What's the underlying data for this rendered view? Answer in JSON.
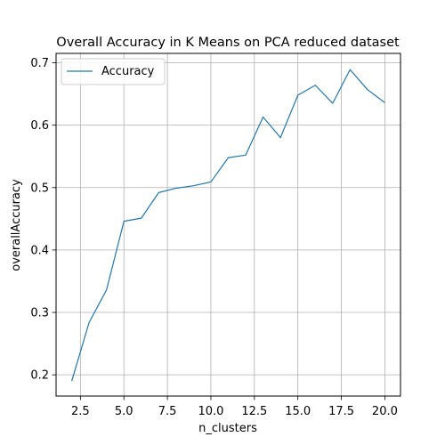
{
  "chart_data": {
    "type": "line",
    "title": "Overall Accuracy in K Means on PCA reduced dataset",
    "xlabel": "n_clusters",
    "ylabel": "overallAccuracy",
    "xlim": [
      1.1,
      20.9
    ],
    "ylim": [
      0.166,
      0.715
    ],
    "xticks": [
      2.5,
      5.0,
      7.5,
      10.0,
      12.5,
      15.0,
      17.5,
      20.0
    ],
    "xtick_labels": [
      "2.5",
      "5.0",
      "7.5",
      "10.0",
      "12.5",
      "15.0",
      "17.5",
      "20.0"
    ],
    "yticks": [
      0.2,
      0.3,
      0.4,
      0.5,
      0.6,
      0.7
    ],
    "ytick_labels": [
      "0.2",
      "0.3",
      "0.4",
      "0.5",
      "0.6",
      "0.7"
    ],
    "grid": true,
    "legend_position": "upper-left",
    "series": [
      {
        "name": "Accuracy",
        "color": "#1f77b4",
        "x": [
          2,
          3,
          4,
          5,
          6,
          7,
          8,
          9,
          10,
          11,
          12,
          13,
          14,
          15,
          16,
          17,
          18,
          19,
          20
        ],
        "y": [
          0.19,
          0.284,
          0.336,
          0.446,
          0.451,
          0.492,
          0.499,
          0.503,
          0.509,
          0.548,
          0.552,
          0.613,
          0.58,
          0.648,
          0.664,
          0.635,
          0.689,
          0.657,
          0.636
        ]
      }
    ]
  }
}
